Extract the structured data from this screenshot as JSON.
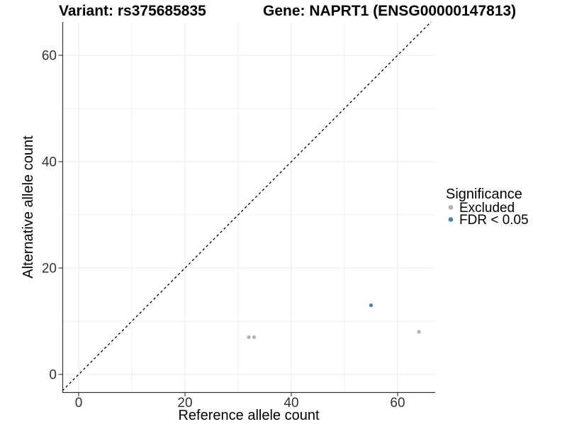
{
  "header": {
    "variant_title": "Variant: rs375685835",
    "gene_title": "Gene: NAPRT1 (ENSG00000147813)"
  },
  "chart_data": {
    "type": "scatter",
    "title": "Variant: rs375685835   Gene: NAPRT1 (ENSG00000147813)",
    "xlabel": "Reference allele count",
    "ylabel": "Alternative allele count",
    "x_ticks": [
      0,
      20,
      40,
      60
    ],
    "y_ticks": [
      0,
      20,
      40,
      60
    ],
    "x_minor_gridlines": [
      10,
      30,
      50
    ],
    "y_minor_gridlines": [
      10,
      30,
      50
    ],
    "xlim": [
      -3.1,
      67.1
    ],
    "ylim": [
      -3.3,
      66.3
    ],
    "grid": true,
    "identity_line": {
      "slope": 1,
      "intercept": 0,
      "style": "dashed",
      "color": "#000000"
    },
    "series": [
      {
        "name": "Excluded",
        "color": "#b3b3b3",
        "points": [
          {
            "x": 32,
            "y": 7
          },
          {
            "x": 33,
            "y": 7
          },
          {
            "x": 64,
            "y": 8
          }
        ]
      },
      {
        "name": "FDR < 0.05",
        "color": "#4682B4",
        "points": [
          {
            "x": 55,
            "y": 13
          }
        ]
      }
    ],
    "legend": {
      "title": "Significance",
      "position": "right"
    },
    "colors": {
      "gridline_major": "#ebebeb",
      "gridline_minor": "#f0f0f0",
      "axis_line": "#333333"
    }
  }
}
